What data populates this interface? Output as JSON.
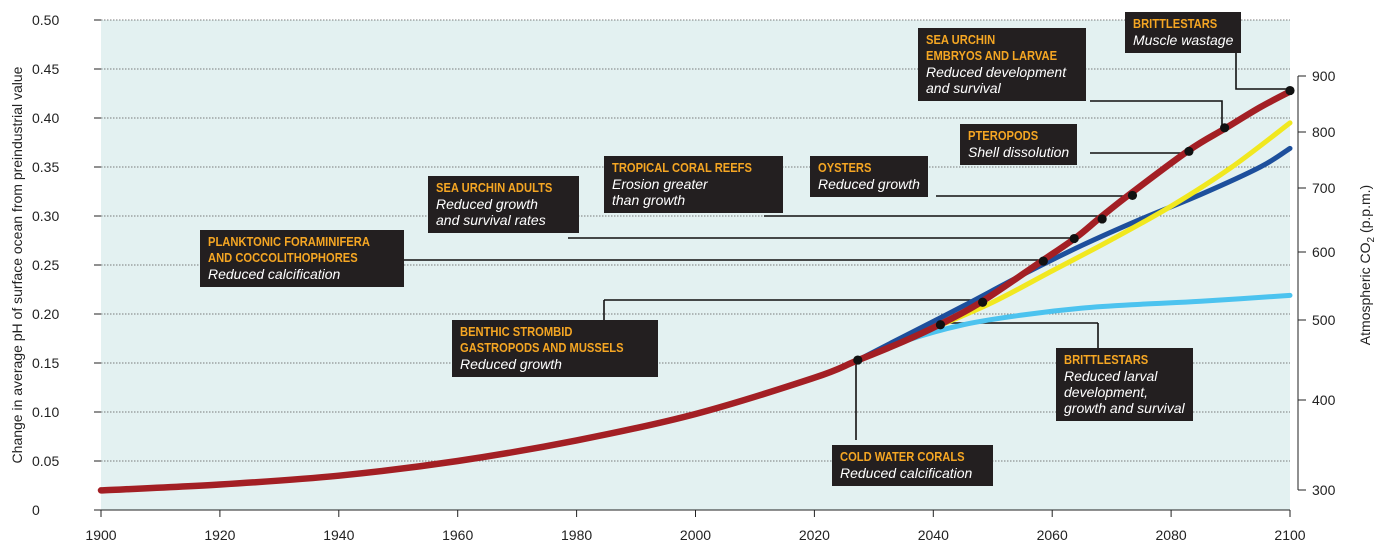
{
  "chart_data": {
    "type": "line",
    "ylabel": "Change in average pH of surface ocean from preindustrial value",
    "y2label": "Atmospheric CO",
    "y2label_sub": "2",
    "y2label_unit": " (p.p.m.)",
    "xlim": [
      1900,
      2100
    ],
    "ylim": [
      0,
      0.5
    ],
    "x_ticks": [
      "1900",
      "1920",
      "1940",
      "1960",
      "1980",
      "2000",
      "2020",
      "2040",
      "2060",
      "2080",
      "2100"
    ],
    "y_ticks": [
      "0",
      "0.05",
      "0.10",
      "0.15",
      "0.20",
      "0.25",
      "0.30",
      "0.35",
      "0.40",
      "0.45",
      "0.50"
    ],
    "y2_ticks": [
      "300",
      "400",
      "500",
      "600",
      "700",
      "800",
      "900"
    ],
    "grid": true,
    "series": [
      {
        "color": "#4cc3ef",
        "x": [
          2027,
          2035,
          2045,
          2055,
          2065,
          2075,
          2085,
          2100
        ],
        "values": [
          0.152,
          0.172,
          0.189,
          0.199,
          0.206,
          0.21,
          0.213,
          0.219
        ]
      },
      {
        "color": "#1d4f9c",
        "x": [
          2027,
          2035,
          2045,
          2055,
          2065,
          2075,
          2085,
          2095,
          2100
        ],
        "values": [
          0.152,
          0.177,
          0.208,
          0.24,
          0.27,
          0.297,
          0.322,
          0.35,
          0.369
        ]
      },
      {
        "color": "#f1e81f",
        "x": [
          2041,
          2050,
          2060,
          2070,
          2080,
          2090,
          2100
        ],
        "values": [
          0.188,
          0.212,
          0.244,
          0.276,
          0.31,
          0.349,
          0.395
        ]
      },
      {
        "color": "#a31f24",
        "x": [
          1900,
          1920,
          1940,
          1960,
          1980,
          2000,
          2020,
          2027,
          2035,
          2041,
          2048,
          2058,
          2064,
          2068,
          2073,
          2083,
          2089,
          2095,
          2100
        ],
        "values": [
          0.02,
          0.026,
          0.035,
          0.05,
          0.071,
          0.098,
          0.135,
          0.152,
          0.172,
          0.189,
          0.212,
          0.253,
          0.278,
          0.298,
          0.322,
          0.367,
          0.389,
          0.411,
          0.427
        ]
      }
    ],
    "markers": [
      {
        "x": 2027.3,
        "y": 0.153
      },
      {
        "x": 2041.2,
        "y": 0.189
      },
      {
        "x": 2048.3,
        "y": 0.212
      },
      {
        "x": 2058.5,
        "y": 0.254
      },
      {
        "x": 2063.7,
        "y": 0.277
      },
      {
        "x": 2068.4,
        "y": 0.297
      },
      {
        "x": 2073.5,
        "y": 0.321
      },
      {
        "x": 2083.0,
        "y": 0.366
      },
      {
        "x": 2089.0,
        "y": 0.39
      },
      {
        "x": 2100.0,
        "y": 0.428
      }
    ],
    "annotations": [
      {
        "title": "BRITTLESTARS",
        "desc": "Muscle wastage"
      },
      {
        "title": "SEA URCHIN\nEMBRYOS AND LARVAE",
        "desc": "Reduced development\nand survival"
      },
      {
        "title": "PTEROPODS",
        "desc": "Shell dissolution"
      },
      {
        "title": "OYSTERS",
        "desc": "Reduced growth"
      },
      {
        "title": "TROPICAL CORAL REEFS",
        "desc": "Erosion greater\nthan growth"
      },
      {
        "title": "SEA URCHIN ADULTS",
        "desc": "Reduced growth\nand survival rates"
      },
      {
        "title": "PLANKTONIC FORAMINIFERA\nAND COCCOLITHOPHORES",
        "desc": "Reduced calcification"
      },
      {
        "title": "BENTHIC STROMBID\nGASTROPODS AND MUSSELS",
        "desc": "Reduced growth"
      },
      {
        "title": "BRITTLESTARS",
        "desc": "Reduced larval\ndevelopment,\ngrowth and survival"
      },
      {
        "title": "COLD WATER CORALS",
        "desc": "Reduced calcification"
      }
    ]
  }
}
